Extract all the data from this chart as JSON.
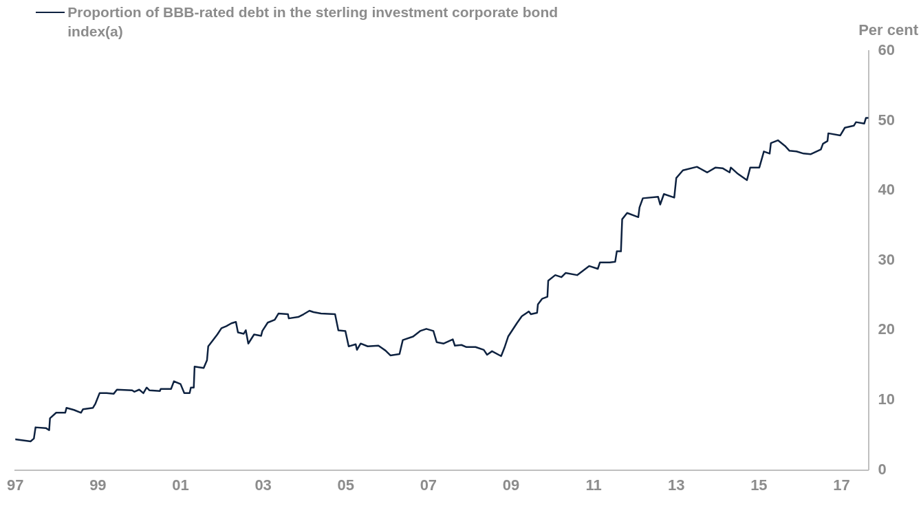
{
  "chart_data": {
    "type": "line",
    "ylabel": "Per cent",
    "legend": "top left",
    "grid": false,
    "marker": "none",
    "line_style": "solid",
    "x": [
      1997.0,
      1997.37,
      1997.45,
      1997.49,
      1997.74,
      1997.82,
      1997.84,
      1997.99,
      1998.21,
      1998.24,
      1998.42,
      1998.59,
      1998.64,
      1998.88,
      1998.94,
      1999.04,
      1999.21,
      1999.38,
      1999.46,
      1999.83,
      1999.88,
      2000.0,
      2000.1,
      2000.18,
      2000.25,
      2000.5,
      2000.52,
      2000.77,
      2000.84,
      2001.0,
      2001.09,
      2001.22,
      2001.25,
      2001.32,
      2001.34,
      2001.56,
      2001.64,
      2001.67,
      2001.76,
      2001.89,
      2001.99,
      2002.11,
      2002.23,
      2002.34,
      2002.39,
      2002.53,
      2002.58,
      2002.64,
      2002.78,
      2002.95,
      2002.98,
      2003.11,
      2003.28,
      2003.37,
      2003.6,
      2003.62,
      2003.85,
      2003.98,
      2004.12,
      2004.22,
      2004.4,
      2004.74,
      2004.82,
      2004.99,
      2005.07,
      2005.24,
      2005.27,
      2005.36,
      2005.53,
      2005.79,
      2005.96,
      2006.08,
      2006.3,
      2006.38,
      2006.63,
      2006.8,
      2006.95,
      2007.12,
      2007.2,
      2007.37,
      2007.59,
      2007.64,
      2007.8,
      2007.92,
      2008.14,
      2008.34,
      2008.42,
      2008.54,
      2008.76,
      2008.84,
      2008.93,
      2009.14,
      2009.26,
      2009.43,
      2009.48,
      2009.63,
      2009.65,
      2009.75,
      2009.88,
      2009.9,
      2010.07,
      2010.22,
      2010.32,
      2010.6,
      2010.89,
      2011.1,
      2011.15,
      2011.39,
      2011.52,
      2011.56,
      2011.66,
      2011.69,
      2011.81,
      2012.08,
      2012.11,
      2012.19,
      2012.56,
      2012.61,
      2012.7,
      2012.95,
      2013.0,
      2013.16,
      2013.5,
      2013.75,
      2013.95,
      2014.12,
      2014.29,
      2014.32,
      2014.49,
      2014.71,
      2014.79,
      2015.01,
      2015.12,
      2015.26,
      2015.29,
      2015.46,
      2015.63,
      2015.74,
      2015.91,
      2016.08,
      2016.25,
      2016.5,
      2016.55,
      2016.66,
      2016.68,
      2016.97,
      2017.08,
      2017.3,
      2017.35,
      2017.55,
      2017.59,
      2017.65
    ],
    "series": [
      {
        "name": "Proportion of BBB-rated debt in the sterling investment corporate bond index(a)",
        "color": "#0e2240",
        "values": [
          4.4,
          4.1,
          4.5,
          6.1,
          6.0,
          5.7,
          7.4,
          8.2,
          8.2,
          8.9,
          8.6,
          8.2,
          8.7,
          8.9,
          9.5,
          11.0,
          11.0,
          10.9,
          11.5,
          11.4,
          11.2,
          11.5,
          11.0,
          11.8,
          11.4,
          11.3,
          11.6,
          11.6,
          12.7,
          12.3,
          11.0,
          11.0,
          11.8,
          11.8,
          14.8,
          14.6,
          15.7,
          17.7,
          18.4,
          19.4,
          20.3,
          20.6,
          21.0,
          21.2,
          19.7,
          19.5,
          20.0,
          18.1,
          19.4,
          19.2,
          19.9,
          21.1,
          21.5,
          22.4,
          22.3,
          21.7,
          21.9,
          22.3,
          22.8,
          22.6,
          22.4,
          22.3,
          20.0,
          19.9,
          17.7,
          18.0,
          17.2,
          18.1,
          17.7,
          17.8,
          17.1,
          16.4,
          16.6,
          18.6,
          19.1,
          19.9,
          20.2,
          19.9,
          18.3,
          18.1,
          18.7,
          17.8,
          17.9,
          17.6,
          17.6,
          17.2,
          16.5,
          17.0,
          16.3,
          17.5,
          19.1,
          21.0,
          22.0,
          22.7,
          22.3,
          22.5,
          23.7,
          24.5,
          24.8,
          27.1,
          27.9,
          27.6,
          28.2,
          27.9,
          29.2,
          28.8,
          29.7,
          29.7,
          29.8,
          31.3,
          31.3,
          35.9,
          36.8,
          36.2,
          37.6,
          38.9,
          39.1,
          38.0,
          39.5,
          39.0,
          41.8,
          42.9,
          43.4,
          42.6,
          43.3,
          43.2,
          42.6,
          43.3,
          42.4,
          41.5,
          43.3,
          43.3,
          45.6,
          45.3,
          46.8,
          47.2,
          46.4,
          45.7,
          45.6,
          45.3,
          45.2,
          45.9,
          46.7,
          47.1,
          48.2,
          47.9,
          49.0,
          49.3,
          49.8,
          49.6,
          50.4,
          50.4
        ]
      }
    ],
    "xlim": [
      1997,
      2017.65
    ],
    "xticks": [
      {
        "value": 1997,
        "label": "97"
      },
      {
        "value": 1999,
        "label": "99"
      },
      {
        "value": 2001,
        "label": "01"
      },
      {
        "value": 2003,
        "label": "03"
      },
      {
        "value": 2005,
        "label": "05"
      },
      {
        "value": 2007,
        "label": "07"
      },
      {
        "value": 2009,
        "label": "09"
      },
      {
        "value": 2011,
        "label": "11"
      },
      {
        "value": 2013,
        "label": "13"
      },
      {
        "value": 2015,
        "label": "15"
      },
      {
        "value": 2017,
        "label": "17"
      }
    ],
    "ylim": [
      0,
      60
    ],
    "yticks": [
      0,
      10,
      20,
      30,
      40,
      50,
      60
    ]
  }
}
